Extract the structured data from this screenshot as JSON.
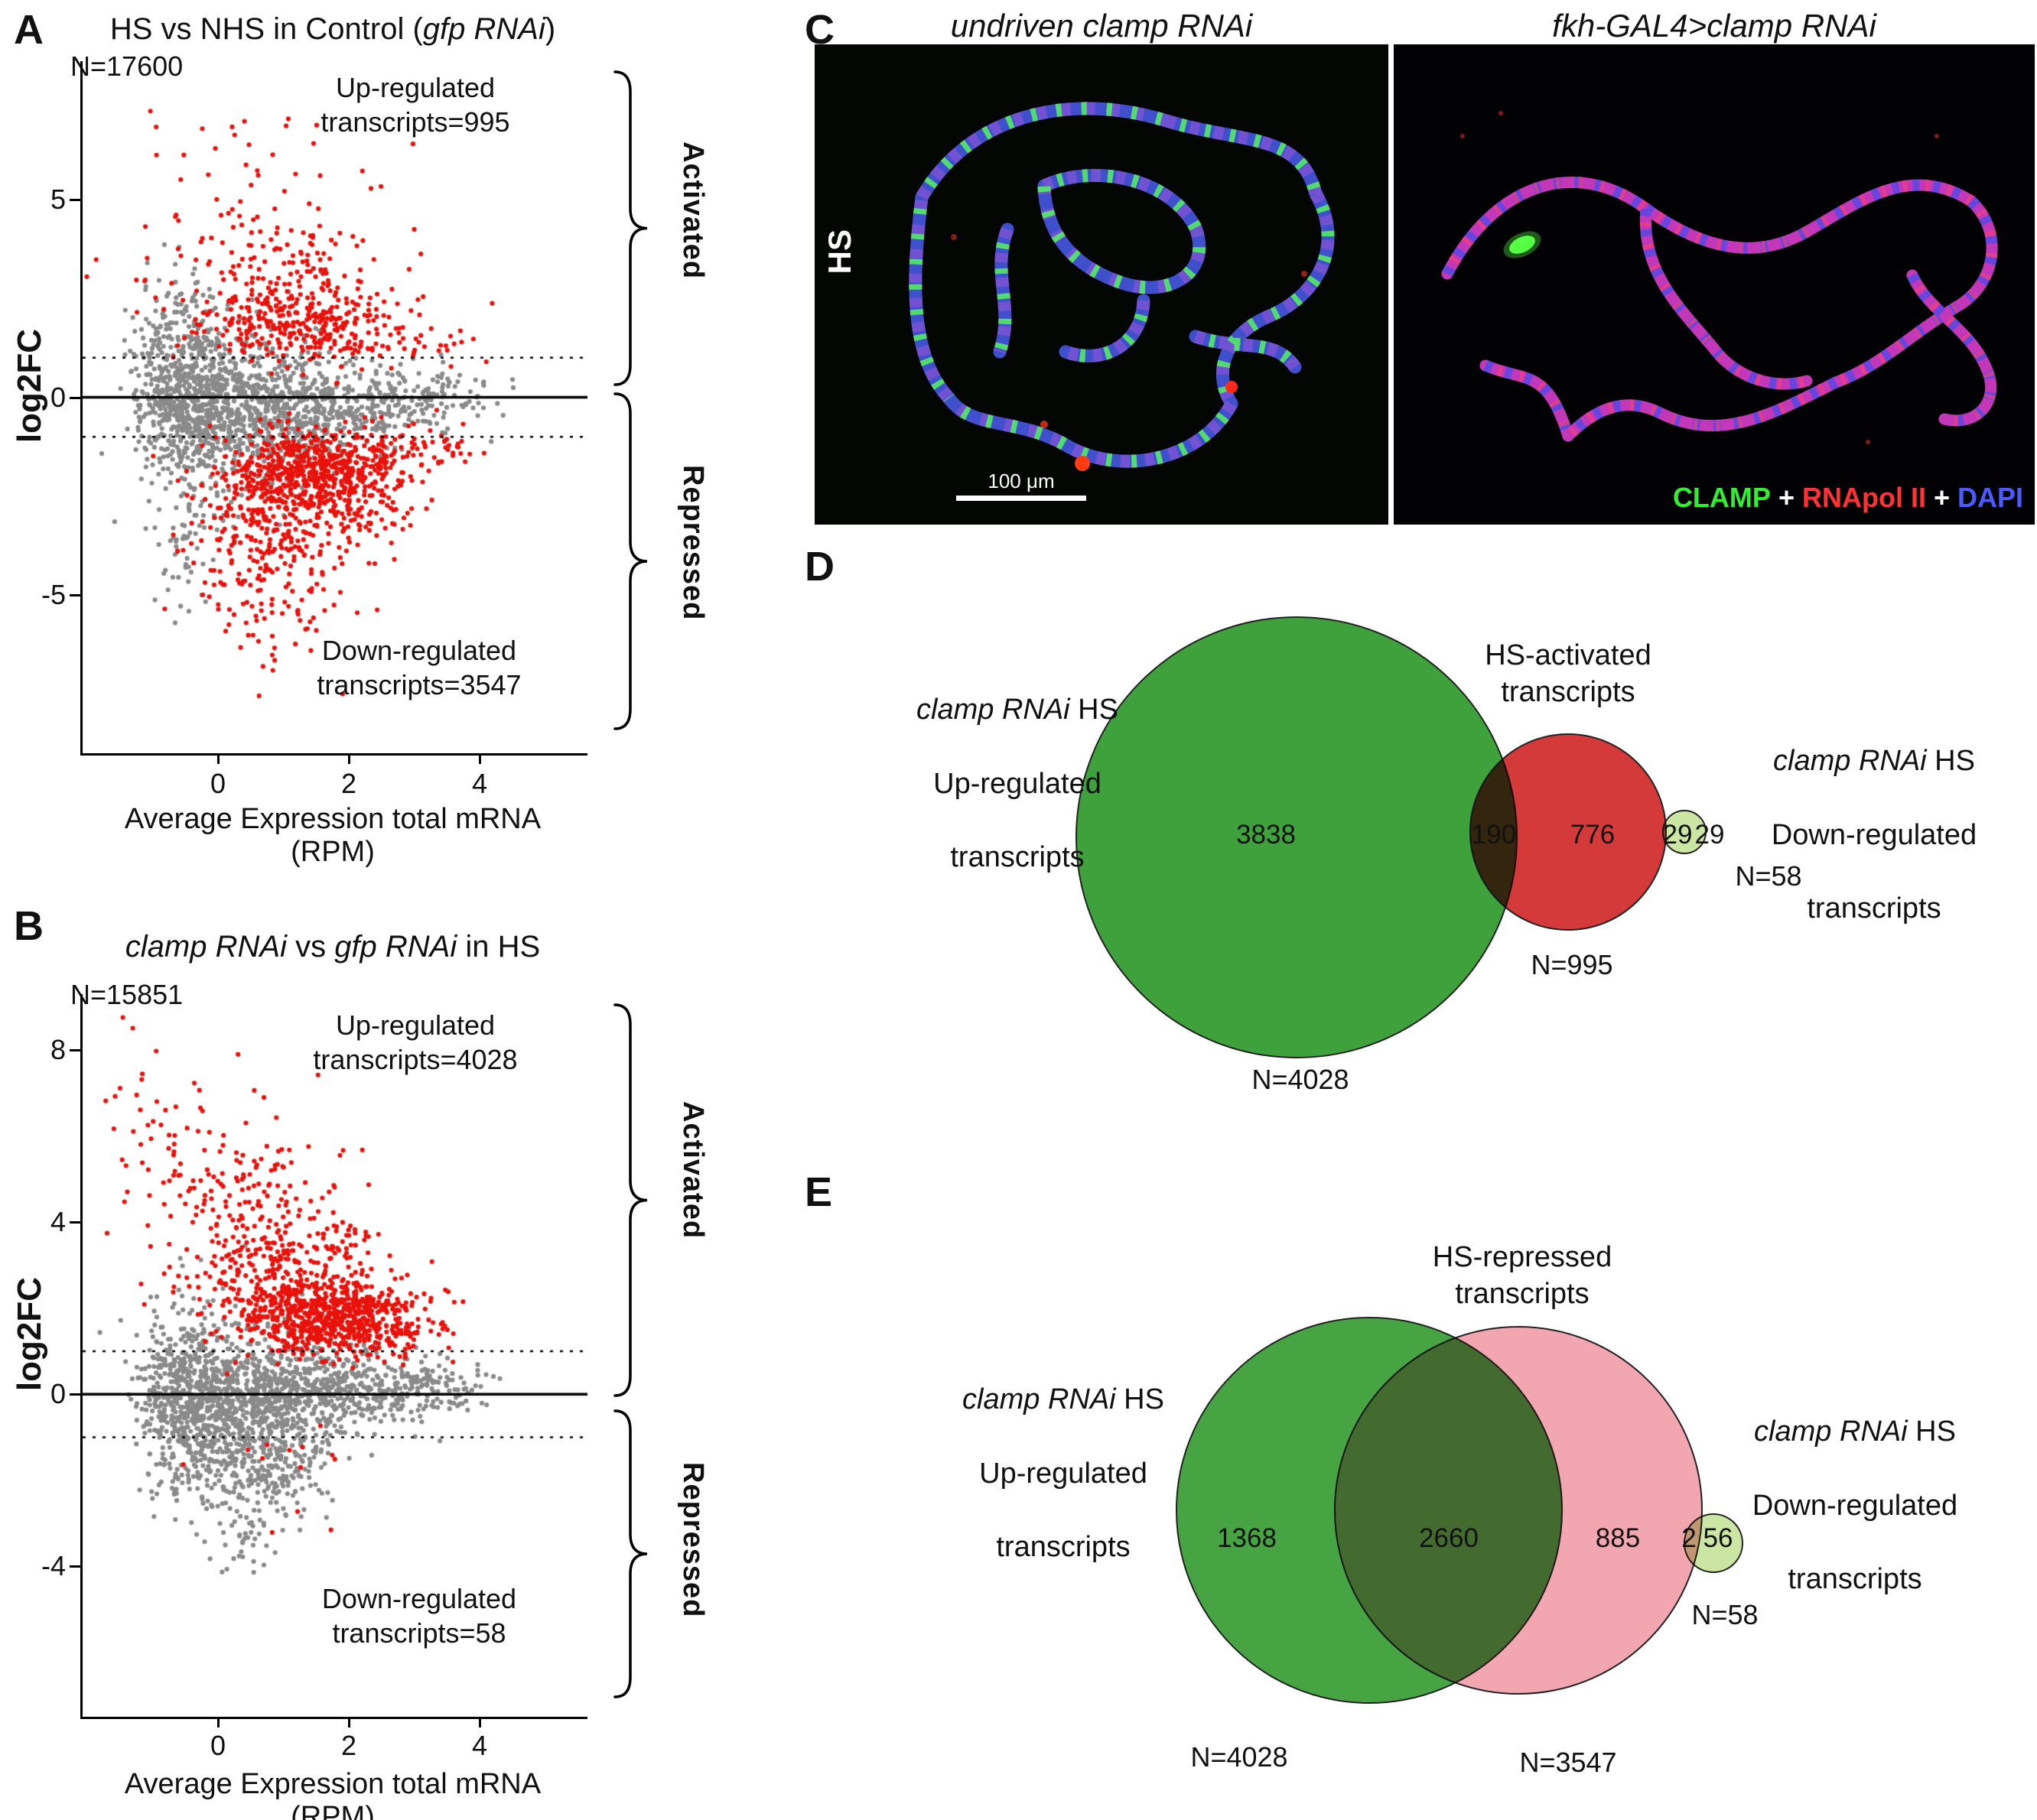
{
  "panels": {
    "A": {
      "letter": "A",
      "title_pre": "HS vs NHS in Control (",
      "title_italic": "gfp RNAi",
      "title_post": ")",
      "n_label": "N=17600",
      "ylabel": "log2FC",
      "xlabel": "Average Expression total mRNA (RPM)",
      "up_annotation": "Up-regulated\ntranscripts=995",
      "down_annotation": "Down-regulated\ntranscripts=3547",
      "activated_label": "Activated",
      "repressed_label": "Repressed",
      "y_ticks": [
        "5",
        "0",
        "-5"
      ],
      "x_ticks": [
        "0",
        "2",
        "4"
      ]
    },
    "B": {
      "letter": "B",
      "title_i1": "clamp RNAi",
      "title_mid": " vs ",
      "title_i2": "gfp RNAi",
      "title_post": " in HS",
      "n_label": "N=15851",
      "ylabel": "log2FC",
      "xlabel": "Average Expression total mRNA (RPM)",
      "up_annotation": "Up-regulated\ntranscripts=4028",
      "down_annotation": "Down-regulated\ntranscripts=58",
      "activated_label": "Activated",
      "repressed_label": "Repressed",
      "y_ticks": [
        "8",
        "4",
        "0",
        "-4"
      ],
      "x_ticks": [
        "0",
        "2",
        "4"
      ]
    },
    "C": {
      "letter": "C",
      "left_title": "undriven clamp RNAi",
      "right_title": "fkh-GAL4>clamp RNAi",
      "row_label": "HS",
      "scale_bar": "100 μm",
      "legend": [
        {
          "text": "CLAMP",
          "color": "#33ee33"
        },
        {
          "text": "+",
          "color": "#ffffff"
        },
        {
          "text": "RNApol II",
          "color": "#ff3333"
        },
        {
          "text": "+",
          "color": "#ffffff"
        },
        {
          "text": "DAPI",
          "color": "#4a5cff"
        }
      ]
    },
    "D": {
      "letter": "D",
      "left_label": {
        "line1_i": "clamp RNAi",
        "line1_post": " HS",
        "line2": "Up-regulated",
        "line3": "transcripts"
      },
      "top_label": "HS-activated\ntranscripts",
      "right_label": {
        "line1_i": "clamp RNAi",
        "line1_post": " HS",
        "line2": "Down-regulated",
        "line3": "transcripts"
      },
      "n_up": "N=4028",
      "n_activated": "N=995",
      "n_down": "N=58"
    },
    "E": {
      "letter": "E",
      "left_label": {
        "line1_i": "clamp RNAi",
        "line1_post": " HS",
        "line2": "Up-regulated",
        "line3": "transcripts"
      },
      "top_label": "HS-repressed\ntranscripts",
      "right_label": {
        "line1_i": "clamp RNAi",
        "line1_post": " HS",
        "line2": "Down-regulated",
        "line3": "transcripts"
      },
      "n_up": "N=4028",
      "n_repressed": "N=3547",
      "n_down": "N=58"
    }
  },
  "chart_data": [
    {
      "type": "scatter",
      "panel": "A",
      "title": "HS vs NHS in Control (gfp RNAi)",
      "xlabel": "Average Expression total mRNA (RPM)",
      "ylabel": "log2FC",
      "n_transcripts": 17600,
      "up_regulated_transcripts": 995,
      "down_regulated_transcripts": 3547,
      "xlim": [
        -2.1,
        5.6
      ],
      "ylim": [
        -9,
        8.5
      ],
      "x_ticks": [
        0,
        2,
        4
      ],
      "y_ticks": [
        5,
        0,
        -5
      ],
      "solid_line_y": 0,
      "dotted_lines_y": [
        1,
        -1
      ],
      "colors": {
        "nonsignificant": "#8a8a8a",
        "significant": "#e8130c"
      },
      "seed": 7,
      "clusters": [
        {
          "n": 600,
          "cx": -0.55,
          "cy": 0.1,
          "sx": 0.35,
          "sy": 1.15,
          "color": "#8a8a8a"
        },
        {
          "n": 550,
          "cx": 0.45,
          "cy": -0.2,
          "sx": 0.6,
          "sy": 1.0,
          "color": "#8a8a8a"
        },
        {
          "n": 420,
          "cx": 1.5,
          "cy": -0.3,
          "sx": 0.85,
          "sy": 0.55,
          "color": "#8a8a8a"
        },
        {
          "n": 130,
          "cx": 3.0,
          "cy": 0.0,
          "sx": 0.6,
          "sy": 0.35,
          "color": "#8a8a8a"
        },
        {
          "n": 60,
          "cx": -0.55,
          "cy": -3.6,
          "sx": 0.35,
          "sy": 1.1,
          "color": "#8a8a8a"
        },
        {
          "n": 40,
          "cx": -0.8,
          "cy": 2.2,
          "sx": 0.3,
          "sy": 0.7,
          "color": "#8a8a8a"
        },
        {
          "n": 520,
          "cx": 1.5,
          "cy": -1.8,
          "sx": 0.7,
          "sy": 0.55,
          "color": "#e8130c"
        },
        {
          "n": 330,
          "cx": 1.2,
          "cy": -2.7,
          "sx": 0.8,
          "sy": 0.8,
          "color": "#e8130c"
        },
        {
          "n": 130,
          "cx": 0.7,
          "cy": -4.3,
          "sx": 0.5,
          "sy": 1.0,
          "color": "#e8130c"
        },
        {
          "n": 10,
          "cx": 1.1,
          "cy": -6.6,
          "sx": 0.8,
          "sy": 0.7,
          "color": "#e8130c"
        },
        {
          "n": 270,
          "cx": 1.3,
          "cy": 1.75,
          "sx": 0.85,
          "sy": 0.5,
          "color": "#e8130c"
        },
        {
          "n": 150,
          "cx": 0.9,
          "cy": 2.8,
          "sx": 0.9,
          "sy": 0.8,
          "color": "#e8130c"
        },
        {
          "n": 55,
          "cx": 0.7,
          "cy": 4.5,
          "sx": 0.9,
          "sy": 1.0,
          "color": "#e8130c"
        },
        {
          "n": 12,
          "cx": 1.3,
          "cy": 6.4,
          "sx": 1.2,
          "sy": 0.55,
          "color": "#e8130c"
        },
        {
          "n": 2,
          "cx": -1.2,
          "cy": 7.0,
          "sx": 0.2,
          "sy": 0.2,
          "color": "#e8130c"
        },
        {
          "n": 45,
          "cx": 3.2,
          "cy": -1.35,
          "sx": 0.5,
          "sy": 0.3,
          "color": "#e8130c"
        },
        {
          "n": 25,
          "cx": 3.1,
          "cy": 1.3,
          "sx": 0.5,
          "sy": 0.25,
          "color": "#e8130c"
        }
      ]
    },
    {
      "type": "scatter",
      "panel": "B",
      "title": "clamp RNAi vs gfp RNAi in HS",
      "xlabel": "Average Expression total mRNA (RPM)",
      "ylabel": "log2FC",
      "n_transcripts": 15851,
      "up_regulated_transcripts": 4028,
      "down_regulated_transcripts": 58,
      "xlim": [
        -2.1,
        5.6
      ],
      "ylim": [
        -7.5,
        9.3
      ],
      "x_ticks": [
        0,
        2,
        4
      ],
      "y_ticks": [
        8,
        4,
        0,
        -4
      ],
      "solid_line_y": 0,
      "dotted_lines_y": [
        1,
        -1
      ],
      "colors": {
        "nonsignificant": "#8a8a8a",
        "significant": "#e8130c"
      },
      "seed": 11,
      "clusters": [
        {
          "n": 650,
          "cx": -0.45,
          "cy": 0.0,
          "sx": 0.4,
          "sy": 1.0,
          "color": "#8a8a8a"
        },
        {
          "n": 600,
          "cx": 0.6,
          "cy": -0.35,
          "sx": 0.65,
          "sy": 0.9,
          "color": "#8a8a8a"
        },
        {
          "n": 430,
          "cx": 1.7,
          "cy": 0.1,
          "sx": 0.8,
          "sy": 0.5,
          "color": "#8a8a8a"
        },
        {
          "n": 110,
          "cx": 3.1,
          "cy": 0.2,
          "sx": 0.5,
          "sy": 0.3,
          "color": "#8a8a8a"
        },
        {
          "n": 150,
          "cx": 0.45,
          "cy": -1.8,
          "sx": 0.6,
          "sy": 0.6,
          "color": "#8a8a8a"
        },
        {
          "n": 45,
          "cx": 0.3,
          "cy": -3.2,
          "sx": 0.5,
          "sy": 0.6,
          "color": "#8a8a8a"
        },
        {
          "n": 680,
          "cx": 1.7,
          "cy": 1.8,
          "sx": 0.65,
          "sy": 0.45,
          "color": "#e8130c"
        },
        {
          "n": 300,
          "cx": 0.95,
          "cy": 2.8,
          "sx": 0.8,
          "sy": 0.75,
          "color": "#e8130c"
        },
        {
          "n": 130,
          "cx": 0.35,
          "cy": 4.6,
          "sx": 0.6,
          "sy": 1.0,
          "color": "#e8130c"
        },
        {
          "n": 40,
          "cx": -0.9,
          "cy": 5.6,
          "sx": 0.35,
          "sy": 1.0,
          "color": "#e8130c"
        },
        {
          "n": 4,
          "cx": -1.7,
          "cy": 6.6,
          "sx": 0.15,
          "sy": 0.5,
          "color": "#e8130c"
        },
        {
          "n": 35,
          "cx": 2.8,
          "cy": 1.45,
          "sx": 0.5,
          "sy": 0.3,
          "color": "#e8130c"
        },
        {
          "n": 10,
          "cx": 1.2,
          "cy": -1.5,
          "sx": 0.8,
          "sy": 0.3,
          "color": "#e8130c"
        },
        {
          "n": 3,
          "cx": 1.0,
          "cy": -3.4,
          "sx": 0.4,
          "sy": 0.5,
          "color": "#e8130c"
        }
      ]
    },
    {
      "type": "venn",
      "panel": "D",
      "sets": [
        {
          "name": "clamp RNAi HS Up-regulated transcripts",
          "n": 4028,
          "color": "#3ea13b"
        },
        {
          "name": "HS-activated transcripts",
          "n": 995,
          "color": "#d43a3a"
        },
        {
          "name": "clamp RNAi HS Down-regulated transcripts",
          "n": 58,
          "color": "#cbe6a3"
        }
      ],
      "regions": {
        "up_only": 3838,
        "up_and_activated": 190,
        "activated_only": 776,
        "activated_and_down": 29,
        "down_only": 29
      }
    },
    {
      "type": "venn",
      "panel": "E",
      "sets": [
        {
          "name": "clamp RNAi HS Up-regulated transcripts",
          "n": 4028,
          "color": "#47a443"
        },
        {
          "name": "HS-repressed transcripts",
          "n": 3547,
          "color": "#f2a7b0"
        },
        {
          "name": "clamp RNAi HS Down-regulated transcripts",
          "n": 58,
          "color": "#cbe6a3"
        }
      ],
      "regions": {
        "up_only": 1368,
        "up_and_repressed": 2660,
        "repressed_only": 885,
        "repressed_and_down": 2,
        "down_only": 56
      }
    }
  ]
}
